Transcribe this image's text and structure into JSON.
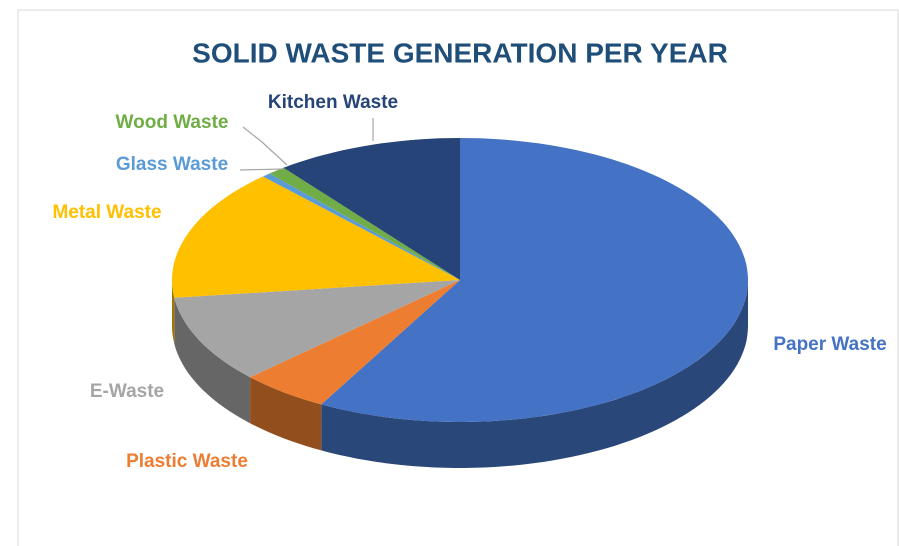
{
  "chart_data": {
    "type": "pie3d",
    "title": "SOLID WASTE GENERATION PER YEAR",
    "categories": [
      "Paper Waste",
      "Plastic Waste",
      "E-Waste",
      "Metal Waste",
      "Glass Waste",
      "Wood Waste",
      "Kitchen Waste"
    ],
    "values": [
      58,
      5,
      10,
      15,
      0.5,
      1,
      10.5
    ],
    "colors": [
      "#4472c4",
      "#ed7d31",
      "#a5a5a5",
      "#ffc000",
      "#5b9bd5",
      "#70ad47",
      "#264478"
    ]
  }
}
